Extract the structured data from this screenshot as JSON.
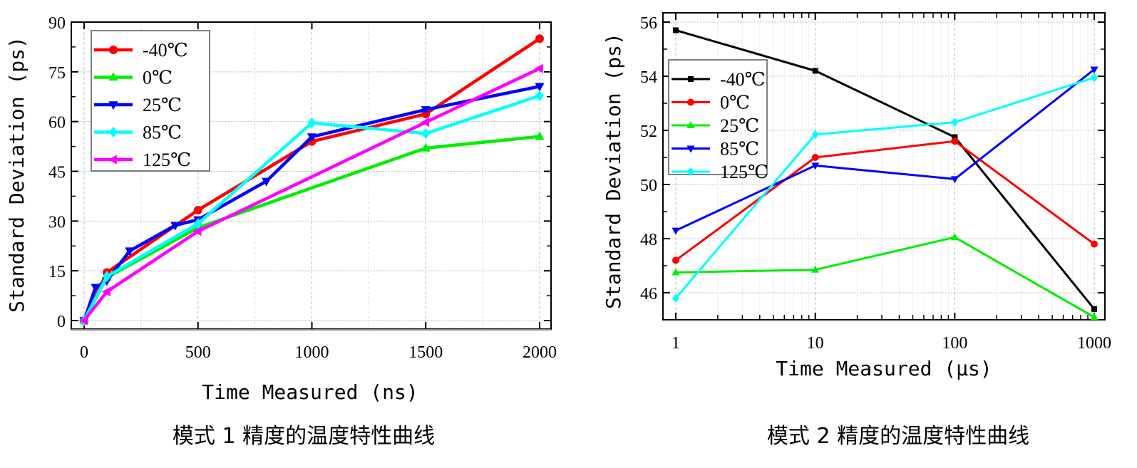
{
  "chart_data": [
    {
      "type": "line",
      "caption": "模式 1 精度的温度特性曲线",
      "xlabel": "Time Measured (ns)",
      "ylabel": "Standard Deviation (ps)",
      "xlim": [
        0,
        2000
      ],
      "ylim": [
        0,
        90
      ],
      "xticks": [
        0,
        500,
        1000,
        1500,
        2000
      ],
      "yticks": [
        0,
        15,
        30,
        45,
        60,
        75,
        90
      ],
      "xscale": "linear",
      "grid": true,
      "legend_position": "top-left",
      "series": [
        {
          "name": "-40℃",
          "color": "#ff0000",
          "marker": "circle",
          "x": [
            0,
            100,
            500,
            1000,
            1500,
            2000
          ],
          "y": [
            0,
            14.5,
            33.3,
            54,
            62.3,
            85
          ]
        },
        {
          "name": "0℃",
          "color": "#00ee00",
          "marker": "triangle-up",
          "x": [
            0,
            100,
            500,
            1500,
            2000
          ],
          "y": [
            0,
            13,
            28,
            52,
            55.5
          ]
        },
        {
          "name": "25℃",
          "color": "#0000ff",
          "marker": "triangle-down",
          "x": [
            0,
            50,
            100,
            200,
            400,
            500,
            800,
            1000,
            1500,
            2000
          ],
          "y": [
            0,
            10,
            12,
            21,
            28.7,
            30.4,
            42,
            55.4,
            63.6,
            70.6
          ]
        },
        {
          "name": "85℃",
          "color": "#00ffff",
          "marker": "diamond",
          "x": [
            0,
            100,
            500,
            1000,
            1500,
            2000
          ],
          "y": [
            0,
            13.3,
            29.2,
            59.6,
            56.4,
            67.8
          ]
        },
        {
          "name": "125℃",
          "color": "#ff00ff",
          "marker": "triangle-left",
          "x": [
            0,
            100,
            500,
            1500,
            2000
          ],
          "y": [
            0,
            8.7,
            26.9,
            59.8,
            76
          ]
        }
      ]
    },
    {
      "type": "line",
      "caption": "模式 2 精度的温度特性曲线",
      "xlabel": "Time Measured (μs)",
      "ylabel": "Standard Deviation (ps)",
      "xlim": [
        1,
        1000
      ],
      "ylim": [
        45,
        56
      ],
      "xticks": [
        1,
        10,
        100,
        1000
      ],
      "yticks": [
        46,
        48,
        50,
        52,
        54,
        56
      ],
      "xscale": "log",
      "grid": true,
      "legend_position": "top-left",
      "series": [
        {
          "name": "-40℃",
          "color": "#000000",
          "marker": "square",
          "x": [
            1,
            10,
            100,
            1000
          ],
          "y": [
            55.7,
            54.2,
            51.75,
            45.4
          ]
        },
        {
          "name": "0℃",
          "color": "#ff0000",
          "marker": "circle",
          "x": [
            1,
            10,
            100,
            1000
          ],
          "y": [
            47.2,
            51.0,
            51.6,
            47.8
          ]
        },
        {
          "name": "25℃",
          "color": "#00ee00",
          "marker": "triangle-up",
          "x": [
            1,
            10,
            100,
            1000
          ],
          "y": [
            46.75,
            46.85,
            48.05,
            45.1
          ]
        },
        {
          "name": "85℃",
          "color": "#0000ff",
          "marker": "triangle-down",
          "x": [
            1,
            10,
            100,
            1000
          ],
          "y": [
            48.3,
            50.7,
            50.2,
            54.25
          ]
        },
        {
          "name": "125℃",
          "color": "#00ffff",
          "marker": "diamond",
          "x": [
            1,
            10,
            100,
            1000
          ],
          "y": [
            45.8,
            51.85,
            52.3,
            53.95
          ]
        }
      ]
    }
  ]
}
